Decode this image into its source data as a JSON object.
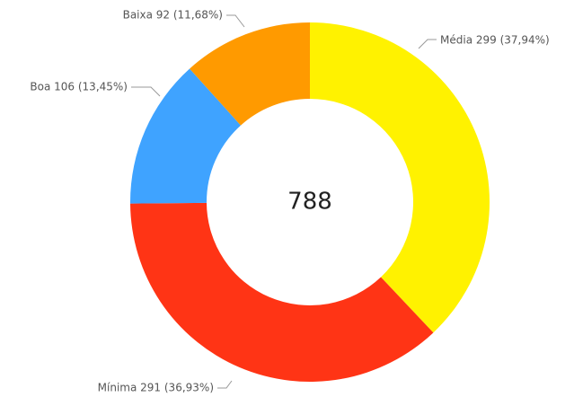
{
  "chart_data": {
    "type": "donut",
    "categories": [
      "Média",
      "Mínima",
      "Boa",
      "Baixa"
    ],
    "values": [
      299,
      291,
      106,
      92
    ],
    "value_labels": [
      "Média 299 (37,94%)",
      "Mínima 291 (36,93%)",
      "Boa 106 (13,45%)",
      "Baixa 92 (11,68%)"
    ],
    "colors": [
      "#FFF200",
      "#FF3415",
      "#3FA3FF",
      "#FF9A00"
    ],
    "center_label": 788
  }
}
